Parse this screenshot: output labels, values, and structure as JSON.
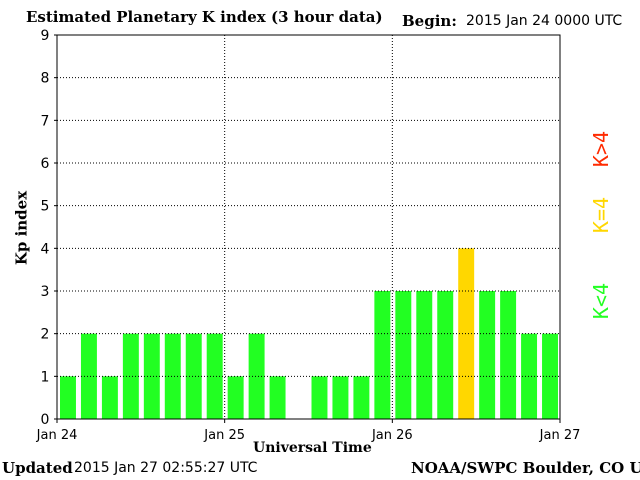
{
  "header": {
    "title": "Estimated Planetary K index (3 hour data)",
    "begin_label": "Begin:",
    "begin_value": "2015 Jan 24 0000 UTC"
  },
  "footer": {
    "updated_label": "Updated",
    "updated_value": "2015 Jan 27 02:55:27 UTC",
    "credit": "NOAA/SWPC Boulder, CO USA"
  },
  "legend": [
    {
      "label": "K<4",
      "color": "#22ff22"
    },
    {
      "label": "K=4",
      "color": "#ffd700"
    },
    {
      "label": "K>4",
      "color": "#ff2a00"
    }
  ],
  "chart_data": {
    "type": "bar",
    "title": "Estimated Planetary K index (3 hour data)",
    "xlabel": "Universal Time",
    "ylabel": "Kp index",
    "ylim": [
      0,
      9
    ],
    "yticks": [
      0,
      1,
      2,
      3,
      4,
      5,
      6,
      7,
      8,
      9
    ],
    "x_tick_labels": [
      "Jan 24",
      "Jan 25",
      "Jan 26",
      "Jan 27"
    ],
    "grid": true,
    "bars_per_day": 8,
    "values": [
      1,
      2,
      1,
      2,
      2,
      2,
      2,
      2,
      1,
      2,
      1,
      0,
      1,
      1,
      1,
      3,
      3,
      3,
      3,
      4,
      3,
      3,
      2,
      2
    ]
  }
}
